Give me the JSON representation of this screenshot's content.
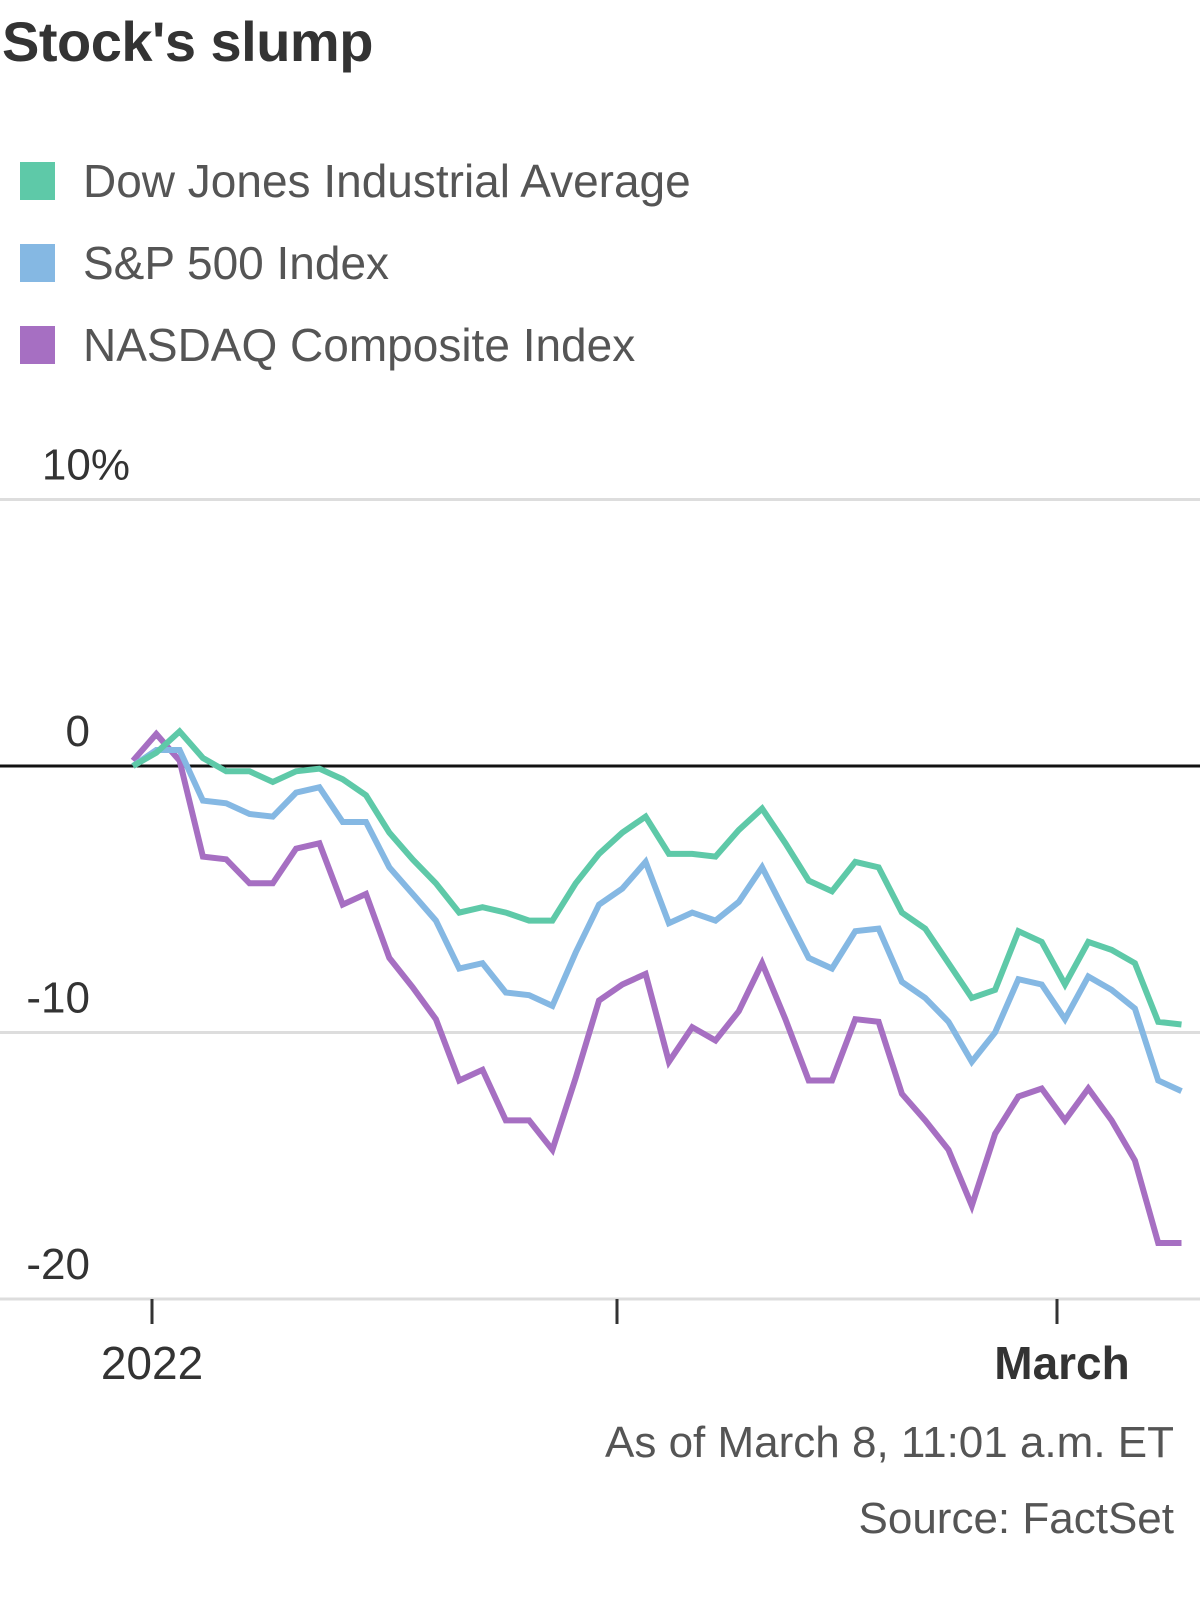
{
  "chart_data": {
    "type": "line",
    "title": "Stock's slump",
    "ylabel": "",
    "xlabel": "",
    "y_unit": "%",
    "ylim": [
      -20,
      10
    ],
    "yticks": [
      {
        "value": 10,
        "label": "10%"
      },
      {
        "value": 0,
        "label": "0"
      },
      {
        "value": -10,
        "label": "-10"
      },
      {
        "value": -20,
        "label": "-20"
      }
    ],
    "xticks": [
      {
        "index": 1,
        "label": "2022",
        "bold": false
      },
      {
        "index": 21,
        "label": "",
        "bold": false
      },
      {
        "index": 40,
        "label": "March",
        "bold": true
      }
    ],
    "grid": true,
    "legend_position": "top-left",
    "x": [
      0,
      1,
      2,
      3,
      4,
      5,
      6,
      7,
      8,
      9,
      10,
      11,
      12,
      13,
      14,
      15,
      16,
      17,
      18,
      19,
      20,
      21,
      22,
      23,
      24,
      25,
      26,
      27,
      28,
      29,
      30,
      31,
      32,
      33,
      34,
      35,
      36,
      37,
      38,
      39,
      40,
      41,
      42,
      43,
      44,
      45
    ],
    "series": [
      {
        "name": "Dow Jones Industrial Average",
        "color": "#5ec9a8",
        "values": [
          0.0,
          0.5,
          1.3,
          0.3,
          -0.2,
          -0.2,
          -0.6,
          -0.2,
          -0.1,
          -0.5,
          -1.1,
          -2.5,
          -3.5,
          -4.4,
          -5.5,
          -5.3,
          -5.5,
          -5.8,
          -5.8,
          -4.4,
          -3.3,
          -2.5,
          -1.9,
          -3.3,
          -3.3,
          -3.4,
          -2.4,
          -1.6,
          -2.9,
          -4.3,
          -4.7,
          -3.6,
          -3.8,
          -5.5,
          -6.1,
          -7.4,
          -8.7,
          -8.4,
          -6.2,
          -6.6,
          -8.2,
          -6.6,
          -6.9,
          -7.4,
          -9.6,
          -9.7
        ]
      },
      {
        "name": "S&P 500 Index",
        "color": "#85b8e3",
        "values": [
          0.0,
          0.6,
          0.6,
          -1.3,
          -1.4,
          -1.8,
          -1.9,
          -1.0,
          -0.8,
          -2.1,
          -2.1,
          -3.8,
          -4.8,
          -5.8,
          -7.6,
          -7.4,
          -8.5,
          -8.6,
          -9.0,
          -7.0,
          -5.2,
          -4.6,
          -3.6,
          -5.9,
          -5.5,
          -5.8,
          -5.1,
          -3.8,
          -5.5,
          -7.2,
          -7.6,
          -6.2,
          -6.1,
          -8.1,
          -8.7,
          -9.6,
          -11.1,
          -10.0,
          -8.0,
          -8.2,
          -9.5,
          -7.9,
          -8.4,
          -9.1,
          -11.8,
          -12.2
        ]
      },
      {
        "name": "NASDAQ Composite Index",
        "color": "#a66fc2",
        "values": [
          0.2,
          1.2,
          0.2,
          -3.4,
          -3.5,
          -4.4,
          -4.4,
          -3.1,
          -2.9,
          -5.2,
          -4.8,
          -7.2,
          -8.3,
          -9.5,
          -11.8,
          -11.4,
          -13.3,
          -13.3,
          -14.4,
          -11.7,
          -8.8,
          -8.2,
          -7.8,
          -11.1,
          -9.8,
          -10.3,
          -9.2,
          -7.4,
          -9.5,
          -11.8,
          -11.8,
          -9.5,
          -9.6,
          -12.3,
          -13.3,
          -14.4,
          -16.5,
          -13.8,
          -12.4,
          -12.1,
          -13.3,
          -12.1,
          -13.3,
          -14.8,
          -17.9,
          -17.9
        ]
      }
    ]
  },
  "notes": {
    "as_of": "As of March 8, 11:01 a.m. ET",
    "source": "Source: FactSet"
  }
}
